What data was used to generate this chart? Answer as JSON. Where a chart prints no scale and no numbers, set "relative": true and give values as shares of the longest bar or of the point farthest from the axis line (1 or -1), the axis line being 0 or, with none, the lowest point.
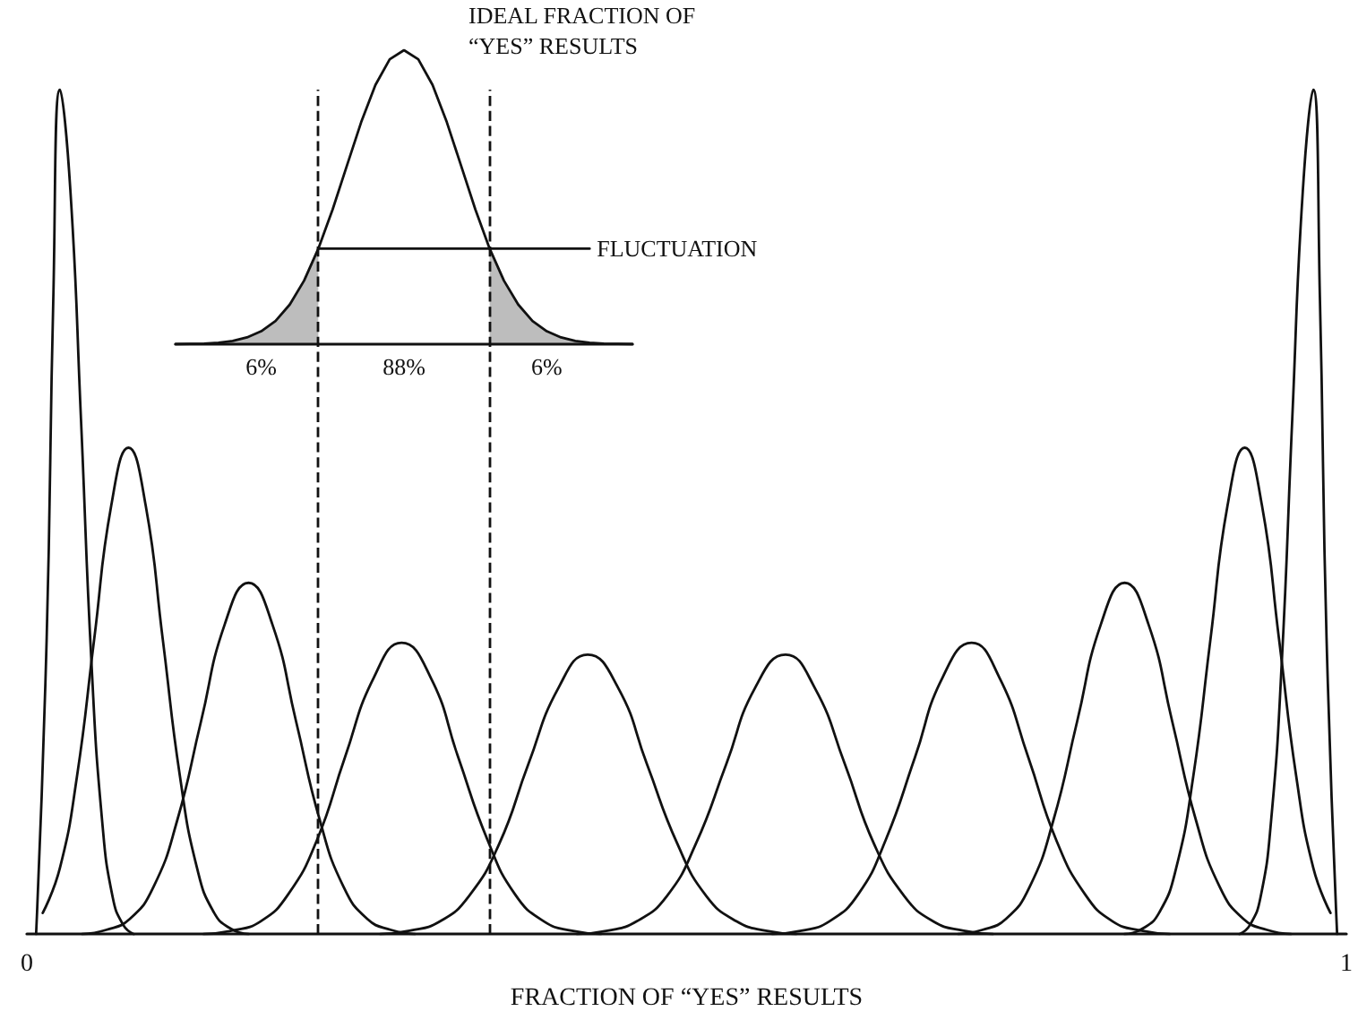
{
  "chart_data": [
    {
      "type": "line",
      "relative": true,
      "xlabel": "FRACTION OF “YES” RESULTS",
      "xlim": [
        0,
        1
      ],
      "xticks": [
        0,
        1
      ],
      "line_style": "solid",
      "marker": "none",
      "ref_lines": [
        {
          "axis": "x",
          "value": 0.219,
          "line_style": "dashed",
          "color": "#111111"
        },
        {
          "axis": "x",
          "value": 0.349,
          "line_style": "dashed",
          "color": "#111111"
        }
      ],
      "series": [
        {
          "color": "#111111",
          "x": [
            0.007,
            0.015,
            0.02,
            0.025,
            0.033,
            0.041,
            0.049,
            0.057,
            0.065,
            0.073,
            0.081
          ],
          "values": [
            0,
            0.35,
            0.75,
            1,
            0.88,
            0.61,
            0.32,
            0.135,
            0.044,
            0.011,
            0
          ]
        },
        {
          "color": "#111111",
          "x": [
            0.012,
            0.025,
            0.038,
            0.051,
            0.064,
            0.077,
            0.09,
            0.103,
            0.116,
            0.129,
            0.142,
            0.155,
            0.168
          ],
          "values": [
            0.025,
            0.078,
            0.187,
            0.349,
            0.508,
            0.576,
            0.508,
            0.349,
            0.187,
            0.078,
            0.025,
            0.006,
            0
          ]
        },
        {
          "color": "#111111",
          "x": [
            0.042,
            0.06,
            0.078,
            0.096,
            0.114,
            0.132,
            0.15,
            0.168,
            0.186,
            0.204,
            0.222,
            0.24,
            0.258,
            0.276,
            0.294
          ],
          "values": [
            0,
            0.005,
            0.018,
            0.056,
            0.135,
            0.252,
            0.367,
            0.416,
            0.367,
            0.252,
            0.135,
            0.056,
            0.018,
            0.005,
            0
          ]
        },
        {
          "color": "#111111",
          "x": [
            0.134,
            0.155,
            0.177,
            0.198,
            0.22,
            0.241,
            0.263,
            0.284,
            0.306,
            0.327,
            0.349,
            0.37,
            0.392,
            0.413,
            0.435
          ],
          "values": [
            0,
            0.004,
            0.015,
            0.047,
            0.112,
            0.209,
            0.304,
            0.345,
            0.304,
            0.209,
            0.112,
            0.047,
            0.015,
            0.004,
            0
          ]
        },
        {
          "color": "#111111",
          "x": [
            0.268,
            0.29,
            0.313,
            0.335,
            0.358,
            0.38,
            0.403,
            0.425,
            0.448,
            0.47,
            0.493,
            0.515,
            0.538,
            0.56,
            0.583
          ],
          "values": [
            0,
            0.004,
            0.015,
            0.045,
            0.107,
            0.201,
            0.292,
            0.331,
            0.292,
            0.201,
            0.107,
            0.045,
            0.015,
            0.004,
            0
          ]
        },
        {
          "color": "#111111",
          "x": [
            0.417,
            0.44,
            0.462,
            0.485,
            0.507,
            0.53,
            0.552,
            0.575,
            0.597,
            0.62,
            0.642,
            0.665,
            0.687,
            0.71,
            0.732
          ],
          "values": [
            0,
            0.004,
            0.015,
            0.045,
            0.107,
            0.201,
            0.292,
            0.331,
            0.292,
            0.201,
            0.107,
            0.045,
            0.015,
            0.004,
            0
          ]
        },
        {
          "color": "#111111",
          "x": [
            0.565,
            0.587,
            0.608,
            0.63,
            0.651,
            0.673,
            0.694,
            0.716,
            0.737,
            0.759,
            0.78,
            0.802,
            0.823,
            0.845,
            0.866
          ],
          "values": [
            0,
            0.004,
            0.015,
            0.047,
            0.112,
            0.209,
            0.304,
            0.345,
            0.304,
            0.209,
            0.112,
            0.047,
            0.015,
            0.004,
            0
          ]
        },
        {
          "color": "#111111",
          "x": [
            0.706,
            0.724,
            0.742,
            0.76,
            0.778,
            0.796,
            0.814,
            0.832,
            0.85,
            0.868,
            0.886,
            0.904,
            0.922,
            0.94,
            0.958
          ],
          "values": [
            0,
            0.005,
            0.018,
            0.056,
            0.135,
            0.252,
            0.367,
            0.416,
            0.367,
            0.252,
            0.135,
            0.056,
            0.018,
            0.005,
            0
          ]
        },
        {
          "color": "#111111",
          "x": [
            0.832,
            0.845,
            0.858,
            0.871,
            0.884,
            0.897,
            0.91,
            0.923,
            0.936,
            0.949,
            0.962,
            0.975,
            0.988
          ],
          "values": [
            0,
            0.006,
            0.025,
            0.078,
            0.187,
            0.349,
            0.508,
            0.576,
            0.508,
            0.349,
            0.187,
            0.078,
            0.025
          ]
        },
        {
          "color": "#111111",
          "x": [
            0.919,
            0.927,
            0.935,
            0.943,
            0.951,
            0.959,
            0.967,
            0.975,
            0.98,
            0.985,
            0.993
          ],
          "values": [
            0,
            0.011,
            0.044,
            0.135,
            0.32,
            0.61,
            0.88,
            1,
            0.75,
            0.35,
            0
          ]
        }
      ]
    },
    {
      "type": "line",
      "relative": true,
      "marker": "none",
      "categories": [
        null,
        null,
        null,
        null,
        null,
        null,
        null,
        null,
        null,
        null,
        null,
        null,
        null,
        null,
        null,
        null,
        null,
        null,
        null,
        null,
        null,
        null,
        null,
        null,
        null,
        null,
        null,
        null,
        null,
        null,
        null,
        null,
        null
      ],
      "annotations": [
        "IDEAL FRACTION OF\n“YES” RESULTS",
        "FLUCTUATION",
        "6%",
        "88%",
        "6%"
      ],
      "series": [
        {
          "color": "#111111",
          "values": [
            0,
            0.001,
            0.002,
            0.005,
            0.011,
            0.023,
            0.044,
            0.079,
            0.135,
            0.216,
            0.325,
            0.458,
            0.607,
            0.755,
            0.882,
            0.969,
            1,
            0.969,
            0.882,
            0.755,
            0.607,
            0.458,
            0.325,
            0.216,
            0.135,
            0.079,
            0.044,
            0.023,
            0.011,
            0.005,
            0.002,
            0.001,
            0
          ]
        },
        {
          "type": "area",
          "color": "#111111",
          "values": [
            0,
            0.001,
            0.002,
            0.005,
            0.011,
            0.023,
            0.044,
            0.079,
            0.135,
            0.216,
            0.325,
            null,
            null,
            null,
            null,
            null,
            null,
            null,
            null,
            null,
            null,
            null,
            null,
            null,
            null,
            null,
            null,
            null,
            null,
            null,
            null,
            null,
            null
          ]
        },
        {
          "type": "area",
          "color": "#111111",
          "values": [
            null,
            null,
            null,
            null,
            null,
            null,
            null,
            null,
            null,
            null,
            null,
            null,
            null,
            null,
            null,
            null,
            null,
            null,
            null,
            null,
            null,
            null,
            0.325,
            0.216,
            0.135,
            0.079,
            0.044,
            0.023,
            0.011,
            0.005,
            0.002,
            0.001,
            0
          ]
        },
        {
          "color": "#111111",
          "values": [
            null,
            null,
            null,
            null,
            null,
            null,
            null,
            null,
            null,
            null,
            0.325,
            null,
            null,
            null,
            null,
            null,
            null,
            null,
            null,
            null,
            null,
            null,
            0.325,
            null,
            null,
            null,
            null,
            null,
            null,
            0.325,
            null,
            null,
            null
          ]
        }
      ]
    }
  ]
}
